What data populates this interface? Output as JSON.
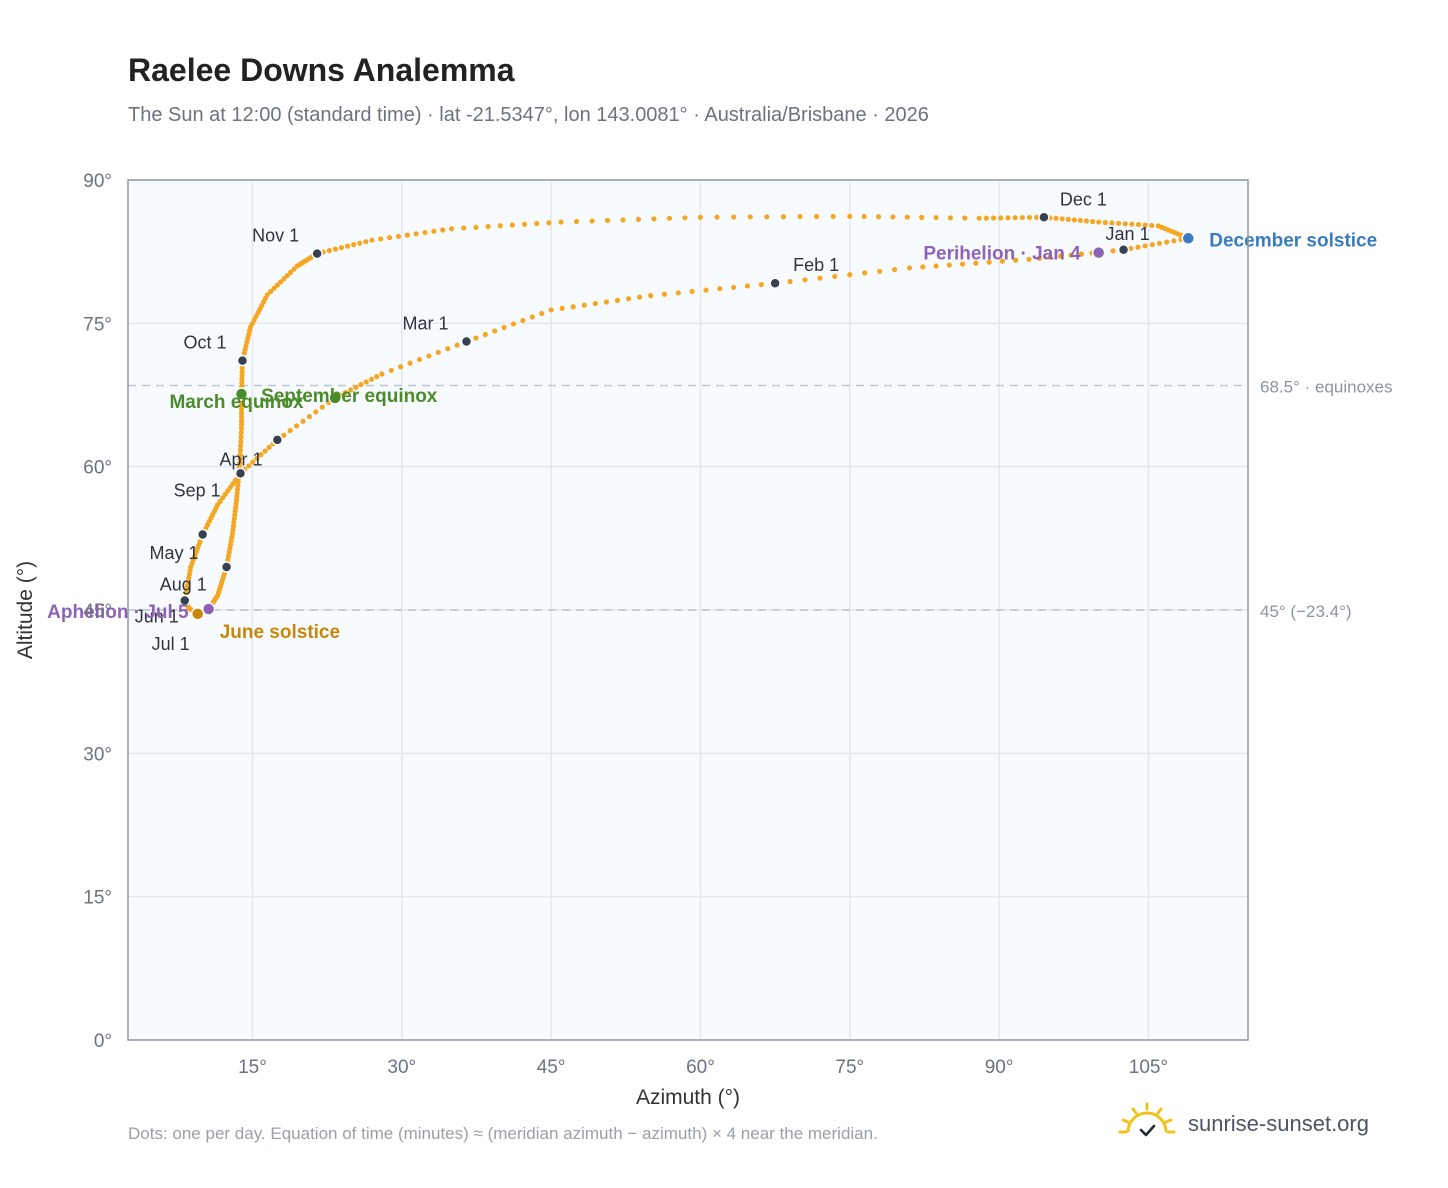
{
  "header": {
    "title": "Raelee Downs Analemma",
    "subtitle": "The Sun at 12:00 (standard time) · lat -21.5347°, lon 143.0081° · Australia/Brisbane · 2026"
  },
  "footer": {
    "note": "Dots: one per day. Equation of time (minutes) ≈ (meridian azimuth − azimuth) × 4 near the meridian.",
    "brand": "sunrise-sunset.org",
    "brand_icon": "sun-logo-icon"
  },
  "colors": {
    "curve": "#f5a623",
    "month_marker": "#374151",
    "equinox": "#4a8c2a",
    "june_solstice": "#c8860a",
    "december_solstice": "#3a7bbf",
    "apsis": "#8e63b5",
    "plot_bg": "#f8fbfe",
    "grid": "#e3e8ee",
    "reference_line": "#b8c6d4"
  },
  "chart_data": {
    "type": "scatter",
    "xlabel": "Azimuth (°)",
    "ylabel": "Altitude (°)",
    "xlim": [
      2.5,
      115
    ],
    "ylim": [
      0,
      90
    ],
    "x_ticks": [
      15,
      30,
      45,
      60,
      75,
      90,
      105
    ],
    "x_tick_labels": [
      "15°",
      "30°",
      "45°",
      "60°",
      "75°",
      "90°",
      "105°"
    ],
    "y_ticks": [
      0,
      15,
      30,
      45,
      60,
      75,
      90
    ],
    "y_tick_labels": [
      "0°",
      "15°",
      "30°",
      "45°",
      "60°",
      "75°",
      "90°"
    ],
    "grid": true,
    "reference_lines": [
      {
        "y": 68.5,
        "label": "68.5° · equinoxes"
      },
      {
        "y": 45,
        "label": "45° (−23.4°)"
      }
    ],
    "series": [
      {
        "points": [
          [
            109.0,
            83.9
          ],
          [
            102.5,
            82.7
          ],
          [
            93.0,
            81.7
          ],
          [
            81.0,
            80.8
          ],
          [
            67.5,
            79.2
          ],
          [
            55.0,
            77.9
          ],
          [
            45.0,
            76.4
          ],
          [
            36.5,
            73.1
          ],
          [
            28.0,
            69.7
          ],
          [
            23.3,
            67.2
          ],
          [
            17.5,
            62.8
          ],
          [
            13.8,
            59.3
          ],
          [
            11.5,
            56.0
          ],
          [
            10.0,
            52.9
          ],
          [
            8.8,
            49.5
          ],
          [
            8.2,
            46.0
          ],
          [
            8.6,
            45.2
          ],
          [
            9.5,
            44.6
          ],
          [
            10.6,
            45.1
          ],
          [
            11.5,
            46.5
          ],
          [
            12.4,
            49.5
          ],
          [
            13.0,
            53.0
          ],
          [
            13.4,
            56.5
          ],
          [
            13.7,
            59.9
          ],
          [
            13.9,
            64.0
          ],
          [
            13.9,
            67.6
          ],
          [
            14.0,
            71.1
          ],
          [
            14.8,
            74.6
          ],
          [
            16.5,
            78.0
          ],
          [
            19.5,
            81.0
          ],
          [
            21.5,
            82.3
          ],
          [
            27.0,
            83.7
          ],
          [
            35.0,
            84.9
          ],
          [
            46.0,
            85.6
          ],
          [
            60.0,
            86.1
          ],
          [
            75.0,
            86.2
          ],
          [
            88.0,
            86.0
          ],
          [
            94.5,
            86.1
          ],
          [
            100.0,
            85.6
          ],
          [
            106.0,
            85.2
          ],
          [
            109.0,
            83.9
          ]
        ]
      }
    ],
    "month_markers": [
      {
        "label": "Jan 1",
        "x": 102.5,
        "y": 82.7
      },
      {
        "label": "Feb 1",
        "x": 67.5,
        "y": 79.2
      },
      {
        "label": "Mar 1",
        "x": 36.5,
        "y": 73.1
      },
      {
        "label": "Apr 1",
        "x": 13.8,
        "y": 59.3
      },
      {
        "label": "May 1",
        "x": 12.4,
        "y": 49.5
      },
      {
        "label": "Jun 1",
        "x": 8.2,
        "y": 46.0
      },
      {
        "label": "Jul 1",
        "x": 9.5,
        "y": 44.6
      },
      {
        "label": "Aug 1",
        "x": 8.2,
        "y": 46.0
      },
      {
        "label": "Sep 1",
        "x": 10.0,
        "y": 52.9
      },
      {
        "label": "Oct 1",
        "x": 14.0,
        "y": 71.1
      },
      {
        "label": "Nov 1",
        "x": 21.5,
        "y": 82.3
      },
      {
        "label": "Dec 1",
        "x": 94.5,
        "y": 86.1
      }
    ],
    "extra_markers": [
      {
        "x": 17.5,
        "y": 62.8
      }
    ],
    "events": [
      {
        "label": "March equinox",
        "x": 13.9,
        "y": 67.6,
        "kind": "equinox"
      },
      {
        "label": "September equinox",
        "x": 23.3,
        "y": 67.2,
        "kind": "equinox"
      },
      {
        "label": "June solstice",
        "x": 9.5,
        "y": 44.6,
        "kind": "june_solstice"
      },
      {
        "label": "December solstice",
        "x": 109.0,
        "y": 83.9,
        "kind": "december_solstice"
      },
      {
        "label": "Perihelion · Jan 4",
        "x": 100.0,
        "y": 82.4,
        "kind": "apsis"
      },
      {
        "label": "Aphelion · Jul 5",
        "x": 10.6,
        "y": 45.1,
        "kind": "apsis"
      }
    ]
  }
}
